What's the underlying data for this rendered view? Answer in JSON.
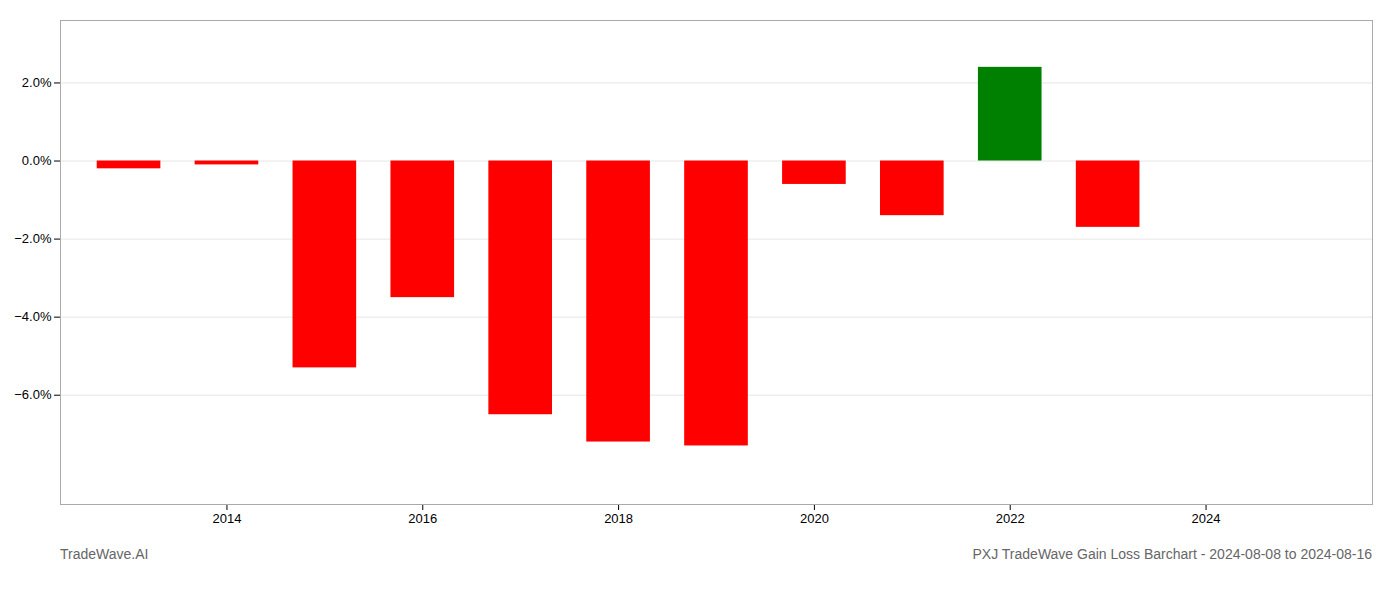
{
  "chart_data": {
    "type": "bar",
    "title": "PXJ TradeWave Gain Loss Barchart - 2024-08-08 to 2024-08-16",
    "annotations": [
      "TradeWave.AI"
    ],
    "x": [
      2013,
      2014,
      2015,
      2016,
      2017,
      2018,
      2019,
      2020,
      2021,
      2022,
      2023
    ],
    "values": [
      -0.002,
      -0.001,
      -0.053,
      -0.035,
      -0.065,
      -0.072,
      -0.073,
      -0.006,
      -0.014,
      0.024,
      -0.017
    ],
    "colors": [
      "#ff0000",
      "#ff0000",
      "#ff0000",
      "#ff0000",
      "#ff0000",
      "#ff0000",
      "#ff0000",
      "#ff0000",
      "#ff0000",
      "#008000",
      "#ff0000"
    ],
    "xlim": [
      2012.3,
      2025.7
    ],
    "xticks": [
      2014,
      2016,
      2018,
      2020,
      2022,
      2024
    ],
    "ylim": [
      -0.088,
      0.036
    ],
    "yticks": [
      {
        "value": -0.06,
        "label": "−6.0%"
      },
      {
        "value": -0.04,
        "label": "−4.0%"
      },
      {
        "value": -0.02,
        "label": "−2.0%"
      },
      {
        "value": 0.0,
        "label": "0.0%"
      },
      {
        "value": 0.02,
        "label": "2.0%"
      }
    ],
    "grid": true
  }
}
